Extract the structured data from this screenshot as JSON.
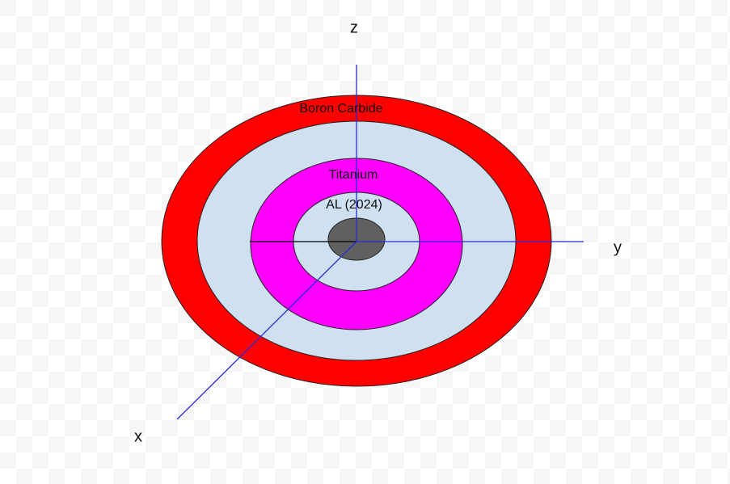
{
  "axes": {
    "z": "z",
    "y": "y",
    "x": "x"
  },
  "layers": [
    {
      "label": "Boron Carbide"
    },
    {
      "label": "Titanium"
    },
    {
      "label": "AL (2024)"
    }
  ]
}
